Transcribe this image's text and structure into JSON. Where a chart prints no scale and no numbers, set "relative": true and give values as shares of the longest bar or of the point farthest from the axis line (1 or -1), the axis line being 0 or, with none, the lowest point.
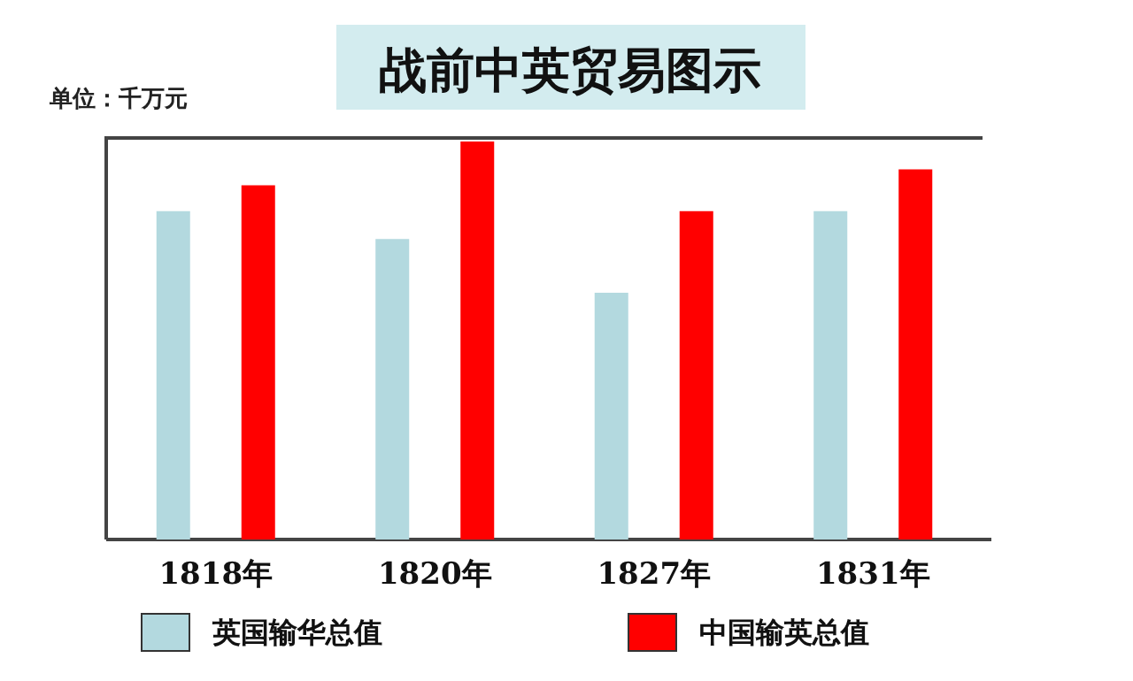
{
  "chart_data": {
    "type": "bar",
    "title": "战前中英贸易图示",
    "annotations": [
      "单位：千万元"
    ],
    "categories": [
      "1818年",
      "1820年",
      "1827年",
      "1831年"
    ],
    "relative": true,
    "legend": "bottom",
    "series": [
      {
        "name": "英国输华总值",
        "color": "#b3d9df",
        "values": [
          0.825,
          0.755,
          0.62,
          0.825
        ]
      },
      {
        "name": "中国输英总值",
        "color": "#ff0000",
        "values": [
          0.89,
          1,
          0.825,
          0.93
        ]
      }
    ]
  }
}
